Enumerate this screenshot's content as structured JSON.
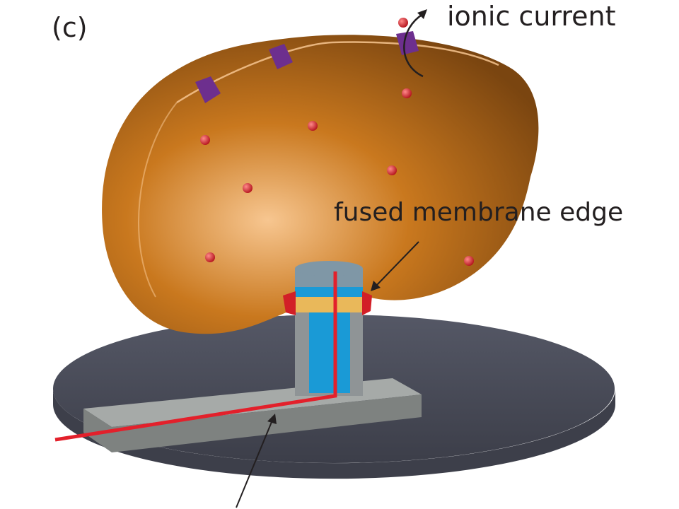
{
  "figure": {
    "panel_label": "(c)",
    "labels": {
      "ionic_current": "ionic current",
      "fused_membrane_edge": "fused membrane edge"
    },
    "icons": {
      "membrane": "cell-membrane-icon",
      "channel": "ion-channel-icon",
      "ion": "ion-sphere-icon",
      "probe": "probe-pillar-icon",
      "substrate": "substrate-disc-icon",
      "electrode": "electrode-wire-icon"
    },
    "colors": {
      "membrane": "#c9781e",
      "membrane_light": "#f7c690",
      "membrane_dark": "#7a4510",
      "channel": "#6d2f8e",
      "ion": "#b3121b",
      "pillar_blue": "#1a9ad6",
      "pillar_gold": "#e9b85a",
      "pillar_gray": "#8f9496",
      "pillar_cap": "#7f97a6",
      "seal_red": "#d21f27",
      "wire": "#e3202b",
      "substrate_top": "#4a4d59",
      "substrate_side": "#3d3f4a",
      "bar_top": "#a6aaa8",
      "bar_side": "#7e8280",
      "text": "#231f20"
    }
  }
}
